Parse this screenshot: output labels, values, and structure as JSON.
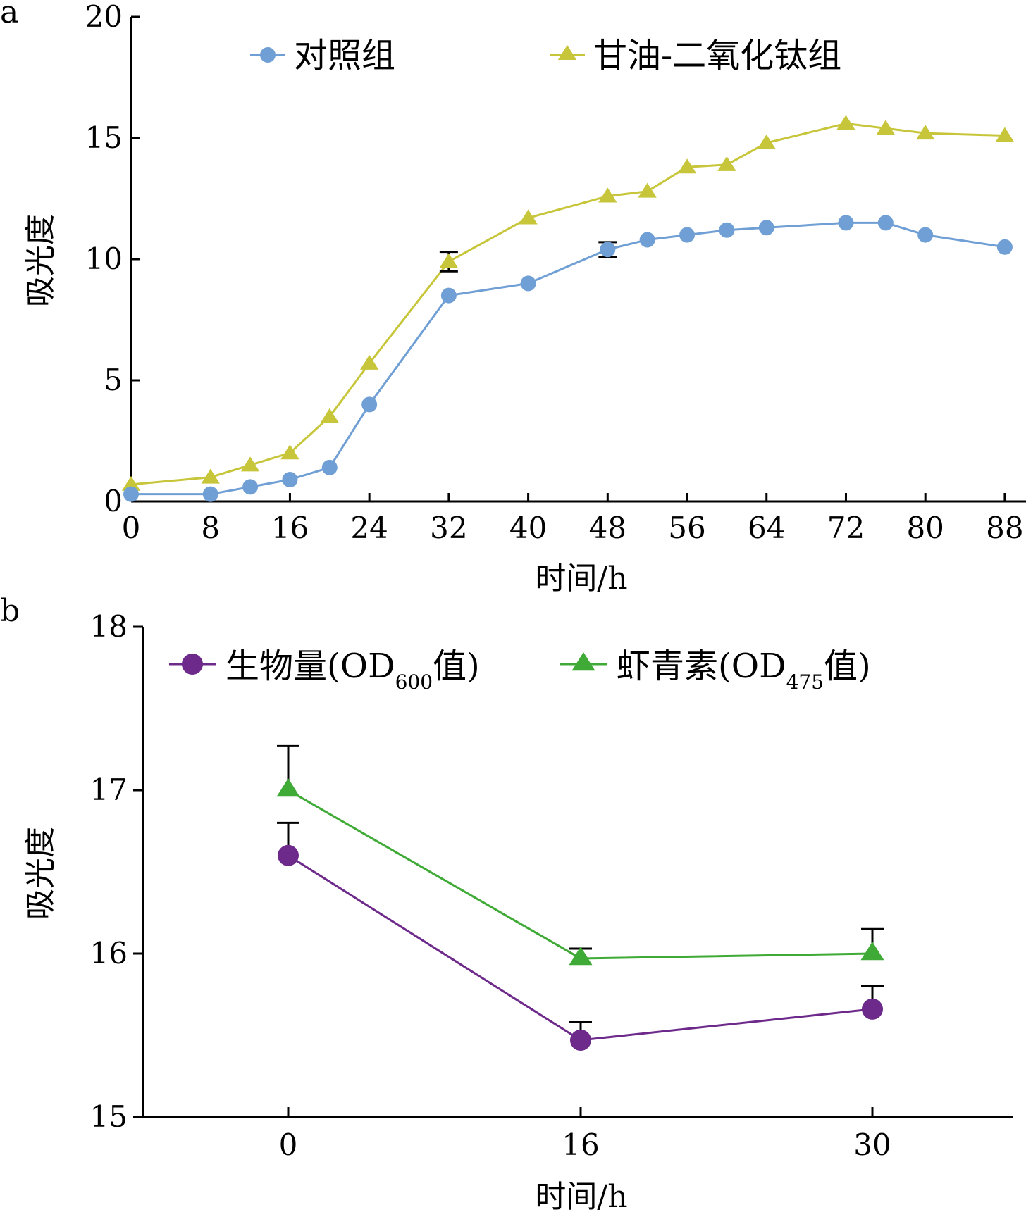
{
  "chart_data": [
    {
      "panel_label": "a",
      "type": "line",
      "xlabel": "时间/h",
      "ylabel": "吸光度",
      "xlim": [
        0,
        89
      ],
      "ylim": [
        0,
        20
      ],
      "xticks": [
        0,
        8,
        16,
        24,
        32,
        40,
        48,
        56,
        64,
        72,
        80,
        88
      ],
      "yticks": [
        0,
        5,
        10,
        15,
        20
      ],
      "legend_position": "top",
      "series": [
        {
          "name": "对照组",
          "marker": "circle",
          "color": "#6f9fd4",
          "x": [
            0,
            8,
            12,
            16,
            20,
            24,
            32,
            40,
            48,
            52,
            56,
            60,
            64,
            72,
            76,
            80,
            88
          ],
          "y": [
            0.3,
            0.3,
            0.6,
            0.9,
            1.4,
            4.0,
            8.5,
            9.0,
            10.4,
            10.8,
            11.0,
            11.2,
            11.3,
            11.5,
            11.5,
            11.0,
            10.5
          ],
          "error": [
            0,
            0,
            0,
            0,
            0,
            0,
            0,
            0,
            0.3,
            0,
            0,
            0,
            0,
            0,
            0,
            0,
            0
          ]
        },
        {
          "name": "甘油-二氧化钛组",
          "marker": "triangle",
          "color": "#c7c63a",
          "x": [
            0,
            8,
            12,
            16,
            20,
            24,
            32,
            40,
            48,
            52,
            56,
            60,
            64,
            72,
            76,
            80,
            88
          ],
          "y": [
            0.7,
            1.0,
            1.5,
            2.0,
            3.5,
            5.7,
            9.9,
            11.7,
            12.6,
            12.8,
            13.8,
            13.9,
            14.8,
            15.6,
            15.4,
            15.2,
            15.1
          ],
          "error": [
            0,
            0,
            0,
            0,
            0,
            0,
            0.4,
            0,
            0,
            0,
            0,
            0,
            0,
            0,
            0,
            0,
            0
          ]
        }
      ]
    },
    {
      "panel_label": "b",
      "type": "line",
      "xlabel": "时间/h",
      "ylabel": "吸光度",
      "categories": [
        "0",
        "16",
        "30"
      ],
      "ylim": [
        15,
        18
      ],
      "yticks": [
        15,
        16,
        17,
        18
      ],
      "legend_position": "top",
      "series": [
        {
          "name_main": "生物量(OD",
          "name_sub": "600",
          "name_end": "值)",
          "marker": "circle",
          "color": "#6d2a8b",
          "values": [
            16.6,
            15.47,
            15.66
          ],
          "error": [
            0.2,
            0.11,
            0.14
          ]
        },
        {
          "name_main": "虾青素(OD",
          "name_sub": "475",
          "name_end": "值)",
          "marker": "triangle",
          "color": "#3faa35",
          "values": [
            17.0,
            15.97,
            16.0
          ],
          "error": [
            0.27,
            0.06,
            0.15
          ]
        }
      ]
    }
  ]
}
